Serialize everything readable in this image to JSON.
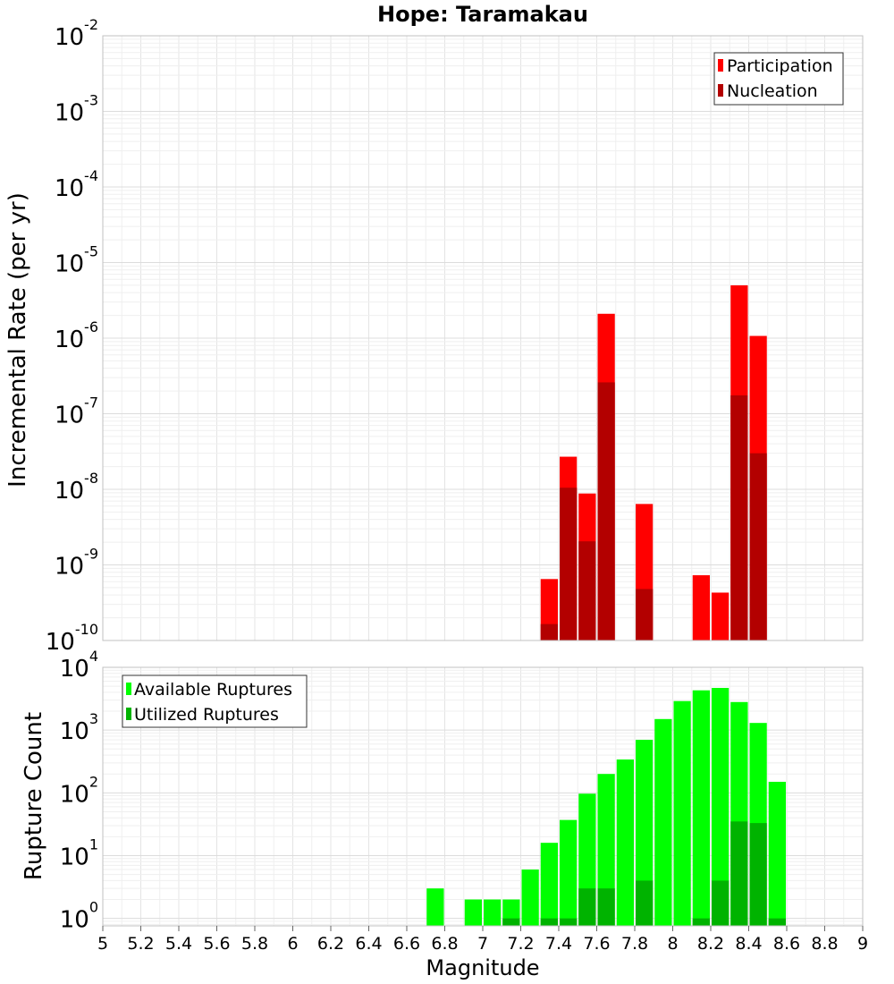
{
  "chart_data": [
    {
      "type": "bar",
      "title": "Hope: Taramakau",
      "ylabel": "Incremental Rate (per yr)",
      "xlabel": "",
      "yscale": "log",
      "xlim": [
        5,
        9
      ],
      "ylim": [
        1e-10,
        0.01
      ],
      "bin_width": 0.1,
      "grid": true,
      "legend_position": "top-right",
      "y_tick_bases": [
        "10",
        "10",
        "10",
        "10",
        "10",
        "10",
        "10",
        "10",
        "10"
      ],
      "y_tick_exponents": [
        "-10",
        "-9",
        "-8",
        "-7",
        "-6",
        "-5",
        "-4",
        "-3",
        "-2"
      ],
      "y_tick_values": [
        1e-10,
        1e-09,
        1e-08,
        1e-07,
        1e-06,
        1e-05,
        0.0001,
        0.001,
        0.01
      ],
      "series": [
        {
          "name": "Participation",
          "color": "#ff0000",
          "x": [
            7.35,
            7.45,
            7.55,
            7.65,
            7.85,
            8.15,
            8.25,
            8.35,
            8.45
          ],
          "values": [
            6.5e-10,
            2.7e-08,
            8.8e-09,
            2.1e-06,
            6.4e-09,
            7.3e-10,
            4.3e-10,
            5e-06,
            1.07e-06
          ]
        },
        {
          "name": "Nucleation",
          "color": "#b30000",
          "x": [
            7.35,
            7.45,
            7.55,
            7.65,
            7.85,
            8.35,
            8.45
          ],
          "values": [
            1.65e-10,
            1.05e-08,
            2.05e-09,
            2.6e-07,
            4.8e-10,
            1.75e-07,
            3e-08
          ]
        }
      ]
    },
    {
      "type": "bar",
      "title": "",
      "ylabel": "Rupture Count",
      "xlabel": "Magnitude",
      "yscale": "log",
      "xlim": [
        5,
        9
      ],
      "ylim": [
        0.76,
        10000
      ],
      "bin_width": 0.1,
      "grid": true,
      "legend_position": "top-left",
      "x_ticks": [
        "5",
        "5.2",
        "5.4",
        "5.6",
        "5.8",
        "6",
        "6.2",
        "6.4",
        "6.6",
        "6.8",
        "7",
        "7.2",
        "7.4",
        "7.6",
        "7.8",
        "8",
        "8.2",
        "8.4",
        "8.6",
        "8.8",
        "9"
      ],
      "x_tick_values": [
        5,
        5.2,
        5.4,
        5.6,
        5.8,
        6,
        6.2,
        6.4,
        6.6,
        6.8,
        7,
        7.2,
        7.4,
        7.6,
        7.8,
        8,
        8.2,
        8.4,
        8.6,
        8.8,
        9
      ],
      "y_tick_bases": [
        "10",
        "10",
        "10",
        "10",
        "10"
      ],
      "y_tick_exponents": [
        "0",
        "1",
        "2",
        "3",
        "4"
      ],
      "y_tick_values": [
        1,
        10,
        100,
        1000,
        10000
      ],
      "series": [
        {
          "name": "Available Ruptures",
          "color": "#00ff00",
          "x": [
            6.75,
            6.95,
            7.05,
            7.15,
            7.25,
            7.35,
            7.45,
            7.55,
            7.65,
            7.75,
            7.85,
            7.95,
            8.05,
            8.15,
            8.25,
            8.35,
            8.45,
            8.55
          ],
          "values": [
            3,
            2,
            2,
            2,
            6,
            16,
            37,
            97,
            200,
            340,
            700,
            1500,
            2900,
            4300,
            4700,
            2800,
            1300,
            150
          ]
        },
        {
          "name": "Utilized Ruptures",
          "color": "#00b300",
          "x": [
            7.15,
            7.35,
            7.45,
            7.55,
            7.65,
            7.85,
            8.15,
            8.25,
            8.35,
            8.45,
            8.55
          ],
          "values": [
            1,
            1,
            1,
            3,
            3,
            4,
            1,
            4,
            35,
            33,
            1
          ]
        }
      ]
    }
  ]
}
